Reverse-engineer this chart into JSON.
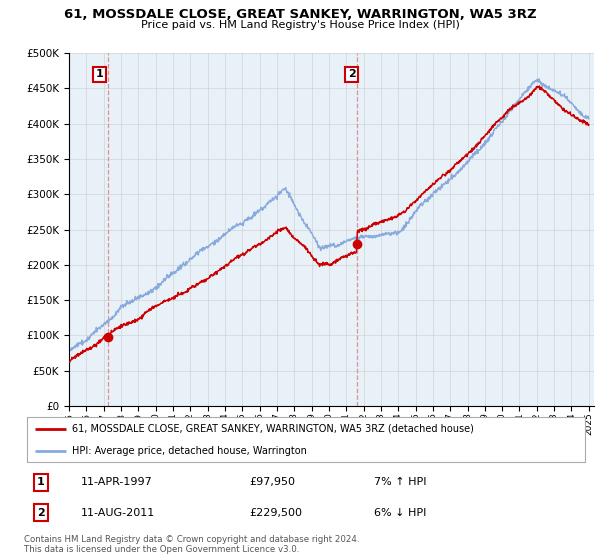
{
  "title": "61, MOSSDALE CLOSE, GREAT SANKEY, WARRINGTON, WA5 3RZ",
  "subtitle": "Price paid vs. HM Land Registry's House Price Index (HPI)",
  "legend_line1": "61, MOSSDALE CLOSE, GREAT SANKEY, WARRINGTON, WA5 3RZ (detached house)",
  "legend_line2": "HPI: Average price, detached house, Warrington",
  "annotation1_label": "1",
  "annotation1_date": "11-APR-1997",
  "annotation1_price": "£97,950",
  "annotation1_hpi": "7% ↑ HPI",
  "annotation2_label": "2",
  "annotation2_date": "11-AUG-2011",
  "annotation2_price": "£229,500",
  "annotation2_hpi": "6% ↓ HPI",
  "footer": "Contains HM Land Registry data © Crown copyright and database right 2024.\nThis data is licensed under the Open Government Licence v3.0.",
  "ylim": [
    0,
    500000
  ],
  "yticks": [
    0,
    50000,
    100000,
    150000,
    200000,
    250000,
    300000,
    350000,
    400000,
    450000,
    500000
  ],
  "sale1_x": 1997.27,
  "sale1_y": 97950,
  "sale2_x": 2011.61,
  "sale2_y": 229500,
  "red_color": "#cc0000",
  "blue_color": "#88aadd",
  "vline_color": "#dd8888",
  "chart_bg": "#e8f0f8",
  "background_color": "#ffffff",
  "grid_color": "#cccccc",
  "xmin": 1995,
  "xmax": 2025
}
